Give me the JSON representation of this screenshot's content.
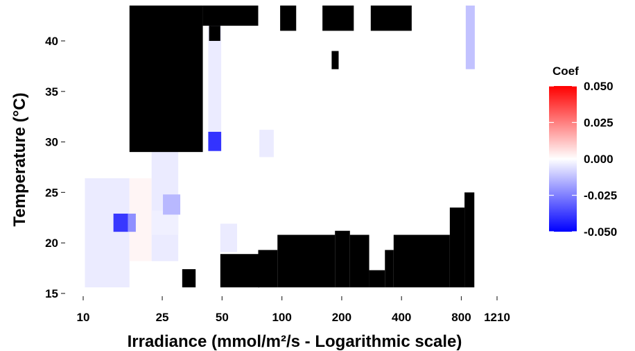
{
  "chart_data": {
    "type": "heatmap",
    "title": "",
    "xlabel": "Irradiance (mmol/m²/s - Logarithmic scale)",
    "ylabel": "Temperature (°C)",
    "x_scale": "log",
    "x_ticks": [
      10,
      25,
      50,
      100,
      200,
      400,
      800,
      1210
    ],
    "y_ticks": [
      15,
      20,
      25,
      30,
      35,
      40
    ],
    "xlim": [
      10,
      1210
    ],
    "ylim": [
      15,
      43.5
    ],
    "grid": false,
    "legend": {
      "title": "Coef",
      "position": "right",
      "ticks": [
        "0.050",
        "0.025",
        "0.000",
        "-0.025",
        "-0.050"
      ],
      "range": [
        -0.05,
        0.05
      ],
      "colors": {
        "low": "#0000ff",
        "mid": "#ffffff",
        "high": "#ff0000"
      }
    },
    "na_color": "#000000",
    "masked_regions": [
      {
        "x": [
          17.1,
          40
        ],
        "y": [
          29,
          43.5
        ]
      },
      {
        "x": [
          40,
          76
        ],
        "y": [
          41.5,
          43.5
        ]
      },
      {
        "x": [
          43,
          49
        ],
        "y": [
          40,
          41.5
        ]
      },
      {
        "x": [
          98,
          118
        ],
        "y": [
          41,
          43.5
        ]
      },
      {
        "x": [
          160,
          230
        ],
        "y": [
          41,
          43.5
        ]
      },
      {
        "x": [
          280,
          450
        ],
        "y": [
          41,
          43.5
        ]
      },
      {
        "x": [
          178,
          193
        ],
        "y": [
          37.2,
          39
        ]
      },
      {
        "x": [
          31.5,
          36.8
        ],
        "y": [
          15.6,
          17.4
        ]
      },
      {
        "x": [
          49,
          77
        ],
        "y": [
          15.6,
          18.9
        ]
      },
      {
        "x": [
          76,
          95
        ],
        "y": [
          15.6,
          19.3
        ]
      },
      {
        "x": [
          95,
          185
        ],
        "y": [
          15.6,
          20.8
        ]
      },
      {
        "x": [
          185,
          220
        ],
        "y": [
          15.6,
          21.2
        ]
      },
      {
        "x": [
          220,
          275
        ],
        "y": [
          15.6,
          20.8
        ]
      },
      {
        "x": [
          275,
          330
        ],
        "y": [
          15.6,
          17.3
        ]
      },
      {
        "x": [
          330,
          365
        ],
        "y": [
          15.6,
          19.3
        ]
      },
      {
        "x": [
          365,
          700
        ],
        "y": [
          15.6,
          20.8
        ]
      },
      {
        "x": [
          700,
          830
        ],
        "y": [
          15.6,
          23.5
        ]
      },
      {
        "x": [
          830,
          930
        ],
        "y": [
          15.6,
          25
        ]
      }
    ],
    "cells": [
      {
        "x": [
          10.2,
          17.1
        ],
        "y": [
          15.6,
          26.4
        ],
        "value": -0.004
      },
      {
        "x": [
          17.1,
          22.1
        ],
        "y": [
          18.2,
          26.4
        ],
        "value": 0.002
      },
      {
        "x": [
          22.1,
          30.1
        ],
        "y": [
          18.2,
          37
        ],
        "value": -0.004
      },
      {
        "x": [
          22.1,
          30.1
        ],
        "y": [
          20.8,
          23.2
        ],
        "value": -0.003
      },
      {
        "x": [
          14.2,
          16.8
        ],
        "y": [
          21.1,
          22.9
        ],
        "value": -0.039
      },
      {
        "x": [
          16.8,
          18.4
        ],
        "y": [
          21.1,
          22.9
        ],
        "value": -0.022
      },
      {
        "x": [
          25.2,
          30.8
        ],
        "y": [
          22.8,
          24.8
        ],
        "value": -0.014
      },
      {
        "x": [
          42.6,
          49.5
        ],
        "y": [
          29.1,
          41.5
        ],
        "value": -0.004
      },
      {
        "x": [
          42.6,
          49.5
        ],
        "y": [
          29.1,
          31.0
        ],
        "value": -0.04
      },
      {
        "x": [
          49,
          59.5
        ],
        "y": [
          19.1,
          21.9
        ],
        "value": -0.004
      },
      {
        "x": [
          77,
          91
        ],
        "y": [
          28.5,
          31.2
        ],
        "value": -0.004
      },
      {
        "x": [
          842,
          935
        ],
        "y": [
          37.2,
          43.5
        ],
        "value": -0.012
      }
    ]
  }
}
